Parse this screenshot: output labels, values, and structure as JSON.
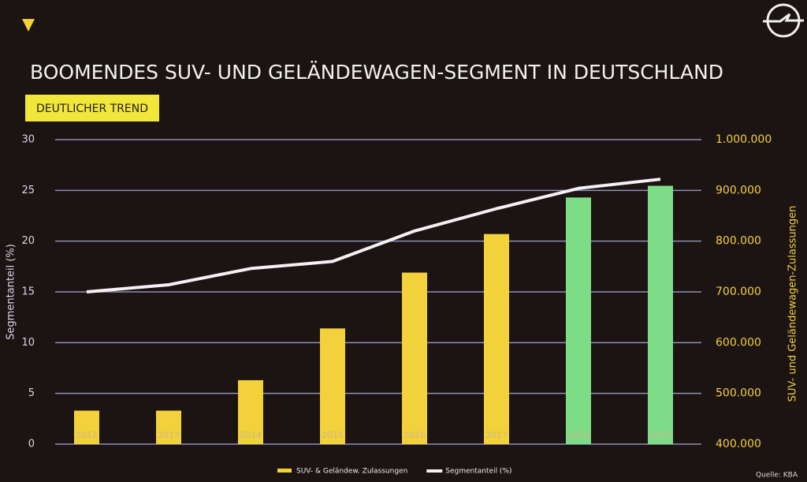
{
  "chart_data": {
    "type": "combo",
    "title": "BOOMENDES SUV- UND GELÄNDEWAGEN-SEGMENT IN DEUTSCHLAND",
    "subtitle": "DEUTLICHER TREND",
    "ylabel": "Segmentanteil (%)",
    "y2label": "SUV- und Geländewagen-Zulassungen",
    "source": "Quelle: KBA",
    "categories": [
      "2012",
      "2013",
      "2014",
      "2015",
      "2016",
      "2017",
      "2018",
      "2019"
    ],
    "series": [
      {
        "name": "SUV- & Geländew. Zulassungen",
        "type": "bar",
        "axis": "y2",
        "color": "#f2d13a",
        "colors": [
          "#f2d13a",
          "#f2d13a",
          "#f2d13a",
          "#f2d13a",
          "#f2d13a",
          "#f2d13a",
          "#7ddc86",
          "#7ddc86"
        ],
        "values": [
          466000,
          466000,
          526000,
          628000,
          738000,
          814000,
          886000,
          909000
        ]
      },
      {
        "name": "Segmentanteil (%)",
        "type": "line",
        "axis": "y",
        "color": "#f4f0f4",
        "values": [
          15.0,
          15.7,
          17.3,
          18.0,
          21.0,
          23.2,
          25.2,
          26.1
        ]
      }
    ],
    "ylim": [
      0,
      30
    ],
    "yticks": [
      0,
      5,
      10,
      15,
      20,
      25,
      30
    ],
    "y2lim": [
      400000,
      1000000
    ],
    "y2ticks": [
      {
        "value": 400000,
        "label": "400.000"
      },
      {
        "value": 500000,
        "label": "500.000"
      },
      {
        "value": 600000,
        "label": "600.000"
      },
      {
        "value": 700000,
        "label": "700.000"
      },
      {
        "value": 800000,
        "label": "800.000"
      },
      {
        "value": 900000,
        "label": "900.000"
      },
      {
        "value": 1000000,
        "label": "1.000.000"
      }
    ],
    "grid": true
  }
}
